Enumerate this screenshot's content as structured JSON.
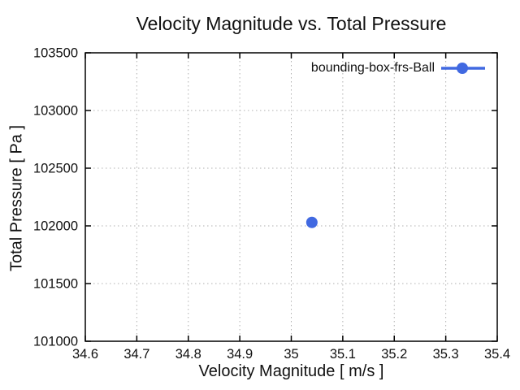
{
  "chart_data": {
    "type": "scatter",
    "title": "Velocity Magnitude vs. Total Pressure",
    "xlabel": "Velocity Magnitude [ m/s ]",
    "ylabel": "Total Pressure [ Pa ]",
    "xlim": [
      34.6,
      35.4
    ],
    "ylim": [
      101000,
      103500
    ],
    "x_ticks": [
      {
        "value": 34.6,
        "label": "34.6"
      },
      {
        "value": 34.7,
        "label": "34.7"
      },
      {
        "value": 34.8,
        "label": "34.8"
      },
      {
        "value": 34.9,
        "label": "34.9"
      },
      {
        "value": 35.0,
        "label": "35"
      },
      {
        "value": 35.1,
        "label": "35.1"
      },
      {
        "value": 35.2,
        "label": "35.2"
      },
      {
        "value": 35.3,
        "label": "35.3"
      },
      {
        "value": 35.4,
        "label": "35.4"
      }
    ],
    "y_ticks": [
      {
        "value": 101000,
        "label": "101000"
      },
      {
        "value": 101500,
        "label": "101500"
      },
      {
        "value": 102000,
        "label": "102000"
      },
      {
        "value": 102500,
        "label": "102500"
      },
      {
        "value": 103000,
        "label": "103000"
      },
      {
        "value": 103500,
        "label": "103500"
      }
    ],
    "grid": true,
    "grid_style": "dotted",
    "legend_position": "top-right-inside",
    "series": [
      {
        "name": "bounding-box-frs-Ball",
        "color": "#4169E1",
        "marker": "circle",
        "marker_size": 7,
        "points": [
          [
            35.04,
            102030
          ]
        ]
      }
    ]
  },
  "colors": {
    "background": "#ffffff",
    "border": "#000000",
    "grid": "#b0b0b0",
    "text": "#111111"
  }
}
